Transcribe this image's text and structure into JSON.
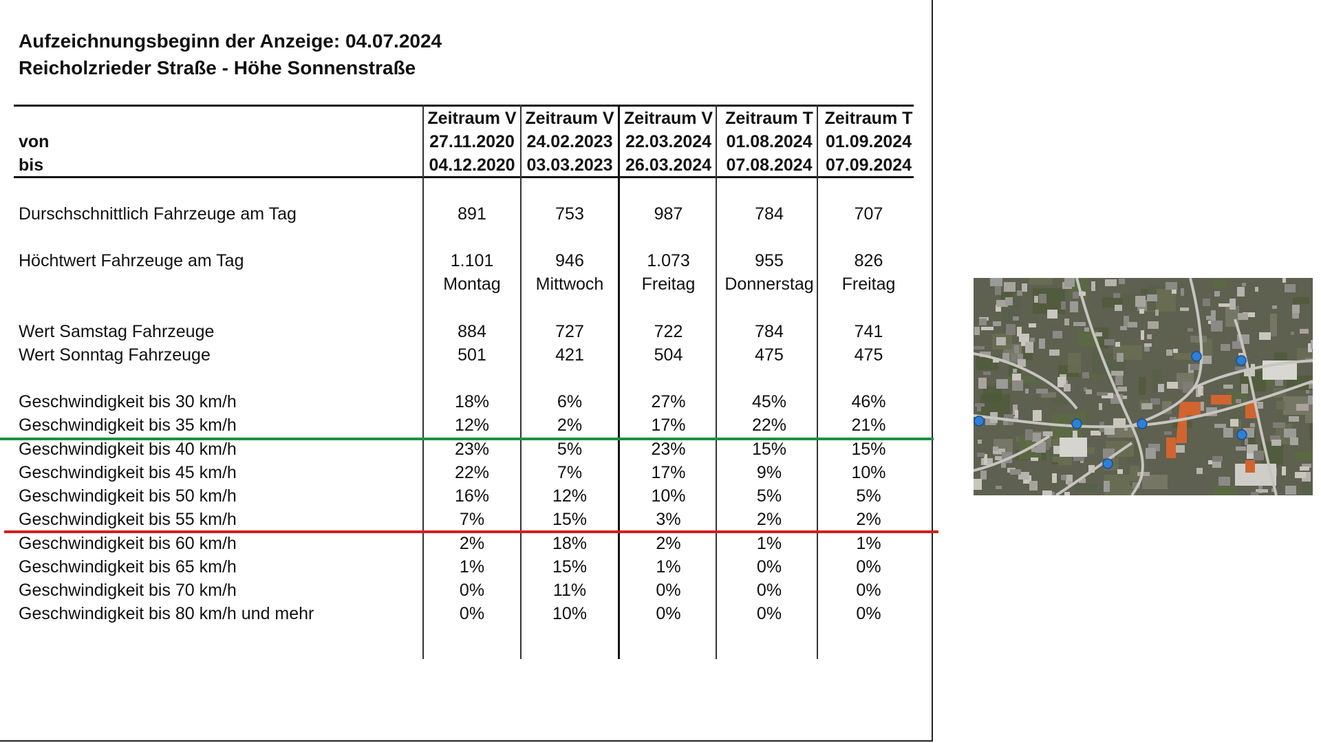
{
  "title": {
    "line1": "Aufzeichnungsbeginn der Anzeige: 04.07.2024",
    "line2": "Reicholzrieder Straße - Höhe Sonnenstraße"
  },
  "header": {
    "von_label": "von",
    "bis_label": "bis",
    "columns": [
      {
        "name": "Zeitraum V",
        "von": "27.11.2020",
        "bis": "04.12.2020"
      },
      {
        "name": "Zeitraum V",
        "von": "24.02.2023",
        "bis": "03.03.2023"
      },
      {
        "name": "Zeitraum V",
        "von": "22.03.2024",
        "bis": "26.03.2024"
      },
      {
        "name": "Zeitraum T",
        "von": "01.08.2024",
        "bis": "07.08.2024"
      },
      {
        "name": "Zeitraum T",
        "von": "01.09.2024",
        "bis": "07.09.2024"
      }
    ]
  },
  "rows": [
    {
      "label": "Durschschnittlich Fahrzeuge am Tag",
      "values": [
        "891",
        "753",
        "987",
        "784",
        "707"
      ]
    },
    {
      "label": "Höchtwert Fahrzeuge am Tag",
      "values": [
        "1.101",
        "946",
        "1.073",
        "955",
        "826"
      ]
    },
    {
      "label": "",
      "values": [
        "Montag",
        "Mittwoch",
        "Freitag",
        "Donnerstag",
        "Freitag"
      ]
    },
    {
      "label": "Wert Samstag Fahrzeuge",
      "values": [
        "884",
        "727",
        "722",
        "784",
        "741"
      ]
    },
    {
      "label": "Wert Sonntag Fahrzeuge",
      "values": [
        "501",
        "421",
        "504",
        "475",
        "475"
      ]
    },
    {
      "label": "Geschwindigkeit bis 30 km/h",
      "values": [
        "18%",
        "6%",
        "27%",
        "45%",
        "46%"
      ]
    },
    {
      "label": "Geschwindigkeit bis 35 km/h",
      "values": [
        "12%",
        "2%",
        "17%",
        "22%",
        "21%"
      ]
    },
    {
      "label": "Geschwindigkeit bis 40 km/h",
      "values": [
        "23%",
        "5%",
        "23%",
        "15%",
        "15%"
      ]
    },
    {
      "label": "Geschwindigkeit bis 45 km/h",
      "values": [
        "22%",
        "7%",
        "17%",
        "9%",
        "10%"
      ]
    },
    {
      "label": "Geschwindigkeit bis 50 km/h",
      "values": [
        "16%",
        "12%",
        "10%",
        "5%",
        "5%"
      ]
    },
    {
      "label": "Geschwindigkeit bis 55 km/h",
      "values": [
        "7%",
        "15%",
        "3%",
        "2%",
        "2%"
      ]
    },
    {
      "label": "Geschwindigkeit bis 60 km/h",
      "values": [
        "2%",
        "18%",
        "2%",
        "1%",
        "1%"
      ]
    },
    {
      "label": "Geschwindigkeit bis 65 km/h",
      "values": [
        "1%",
        "15%",
        "1%",
        "0%",
        "0%"
      ]
    },
    {
      "label": "Geschwindigkeit bis 70 km/h",
      "values": [
        "0%",
        "11%",
        "0%",
        "0%",
        "0%"
      ]
    },
    {
      "label": "Geschwindigkeit bis 80 km/h und mehr",
      "values": [
        "0%",
        "10%",
        "0%",
        "0%",
        "0%"
      ]
    }
  ],
  "threshold_lines": {
    "green": "#1a9140",
    "red": "#d21f1f"
  },
  "map": {
    "type": "aerial-photo",
    "marker_color": "#2e7fd6"
  }
}
